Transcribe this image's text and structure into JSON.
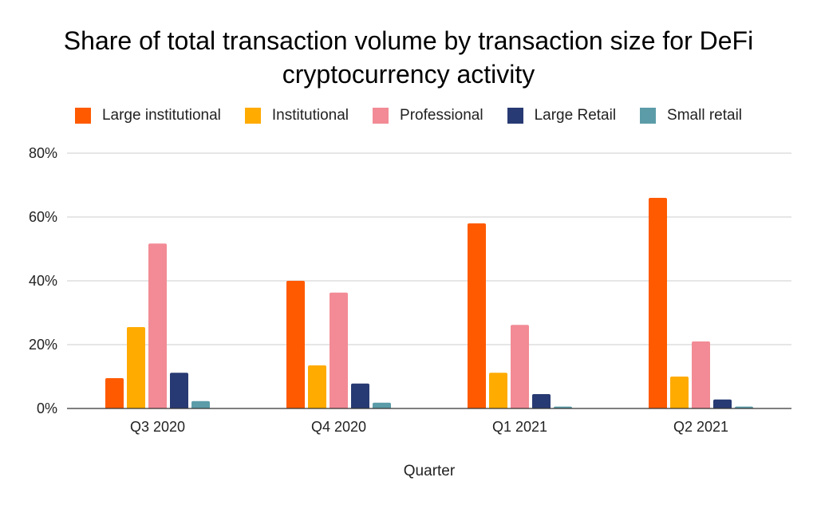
{
  "chart_data": {
    "type": "bar",
    "title": "Share of total transaction volume by transaction size for DeFi cryptocurrency activity",
    "title_lines": [
      "Share of total transaction volume by transaction size for DeFi",
      "cryptocurrency activity"
    ],
    "xlabel": "Quarter",
    "ylabel": "",
    "categories": [
      "Q3 2020",
      "Q4 2020",
      "Q1 2021",
      "Q2 2021"
    ],
    "ylim": [
      0,
      80
    ],
    "yticks": [
      0,
      20,
      40,
      60,
      80
    ],
    "ytick_labels": [
      "0%",
      "20%",
      "40%",
      "60%",
      "80%"
    ],
    "grid": true,
    "legend_position": "top",
    "series": [
      {
        "name": "Large institutional",
        "color": "#ff5a00",
        "values": [
          9.5,
          40,
          58,
          66
        ]
      },
      {
        "name": "Institutional",
        "color": "#ffab00",
        "values": [
          25.5,
          13.5,
          11.2,
          10
        ]
      },
      {
        "name": "Professional",
        "color": "#f28b95",
        "values": [
          51.7,
          36.3,
          26.2,
          21
        ]
      },
      {
        "name": "Large Retail",
        "color": "#283a73",
        "values": [
          11.2,
          7.8,
          4.5,
          2.8
        ]
      },
      {
        "name": "Small retail",
        "color": "#5b9ca8",
        "values": [
          2.3,
          1.8,
          0.6,
          0.6
        ]
      }
    ]
  }
}
